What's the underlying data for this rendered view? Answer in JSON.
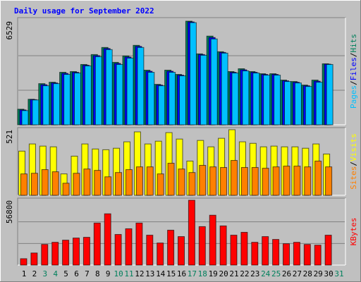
{
  "chart_data": [
    {
      "type": "bar",
      "title": "Daily usage for September 2022",
      "ylim": [
        0,
        6529
      ],
      "yticks": [
        6529
      ],
      "grid": true,
      "legend_separator": "/",
      "series": [
        {
          "name": "Hits",
          "color": "#00805c",
          "values": [
            983,
            1609,
            2593,
            2682,
            3308,
            3353,
            3800,
            4425,
            4872,
            3934,
            4336,
            5006,
            3442,
            2548,
            3442,
            3174,
            6529,
            4470,
            5588,
            4604,
            3353,
            3531,
            3353,
            3218,
            3218,
            2816,
            2727,
            2503,
            2816,
            3844,
            null
          ]
        },
        {
          "name": "Files",
          "color": "#0000ff",
          "values": [
            938,
            1587,
            2526,
            2638,
            3241,
            3308,
            3755,
            4358,
            4805,
            3867,
            4269,
            4939,
            3375,
            2504,
            3375,
            3129,
            6483,
            4426,
            5498,
            4559,
            3308,
            3464,
            3308,
            3174,
            3174,
            2772,
            2682,
            2459,
            2749,
            3822,
            null
          ]
        },
        {
          "name": "Pages",
          "color": "#00c0ff",
          "values": [
            894,
            1565,
            2459,
            2593,
            3174,
            3263,
            3710,
            4291,
            4738,
            3800,
            4202,
            4872,
            3308,
            2459,
            3308,
            3084,
            6437,
            4381,
            5409,
            4515,
            3263,
            3397,
            3263,
            3129,
            3129,
            2727,
            2637,
            2414,
            2682,
            3800,
            null
          ]
        }
      ]
    },
    {
      "type": "bar",
      "ylim": [
        0,
        521
      ],
      "yticks": [
        521
      ],
      "grid": false,
      "legend_separator": "/",
      "series": [
        {
          "name": "Visits",
          "color": "#ffff00",
          "values": [
            351,
            408,
            391,
            385,
            170,
            311,
            408,
            368,
            362,
            374,
            425,
            504,
            408,
            430,
            498,
            447,
            272,
            436,
            385,
            453,
            521,
            425,
            413,
            385,
            391,
            385,
            385,
            374,
            408,
            328,
            null
          ]
        },
        {
          "name": "Sites",
          "color": "#ff8000",
          "values": [
            170,
            175,
            204,
            187,
            96,
            175,
            209,
            198,
            147,
            181,
            204,
            226,
            226,
            170,
            255,
            209,
            181,
            238,
            226,
            221,
            277,
            221,
            221,
            215,
            226,
            232,
            232,
            226,
            272,
            226,
            null
          ]
        }
      ]
    },
    {
      "type": "bar",
      "ylim": [
        0,
        56800
      ],
      "yticks": [
        56800
      ],
      "grid": true,
      "categories": [
        "1",
        "2",
        "3",
        "4",
        "5",
        "6",
        "7",
        "8",
        "9",
        "10",
        "11",
        "12",
        "13",
        "14",
        "15",
        "16",
        "17",
        "18",
        "19",
        "20",
        "21",
        "22",
        "23",
        "24",
        "25",
        "26",
        "27",
        "28",
        "29",
        "30",
        "31"
      ],
      "category_colors": [
        "#000000",
        "#000000",
        "#00805c",
        "#00805c",
        "#000000",
        "#000000",
        "#000000",
        "#000000",
        "#000000",
        "#00805c",
        "#00805c",
        "#000000",
        "#000000",
        "#000000",
        "#000000",
        "#000000",
        "#00805c",
        "#00805c",
        "#000000",
        "#000000",
        "#000000",
        "#000000",
        "#000000",
        "#00805c",
        "#00805c",
        "#000000",
        "#000000",
        "#000000",
        "#000000",
        "#000000",
        "#00805c"
      ],
      "series": [
        {
          "name": "KBytes",
          "color": "#ff0000",
          "values": [
            5616,
            10608,
            18096,
            19968,
            21840,
            23712,
            24336,
            36816,
            44928,
            26832,
            31824,
            36816,
            26208,
            19344,
            30576,
            24960,
            56800,
            33696,
            43680,
            34320,
            26208,
            28704,
            19968,
            24960,
            22464,
            18720,
            19968,
            18096,
            17472,
            26208,
            null
          ]
        }
      ]
    }
  ]
}
